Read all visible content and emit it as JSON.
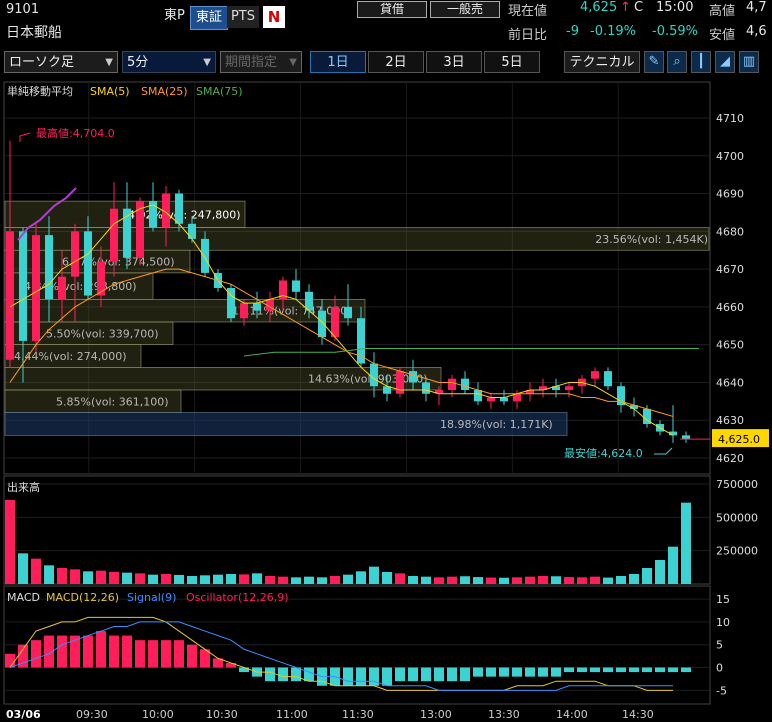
{
  "header": {
    "code": "9101",
    "name": "日本郵船",
    "market_prefix": "東P",
    "btn_tosho": "東証",
    "btn_pts": "PTS",
    "n_badge": "N",
    "btn_taishaku": "貸借",
    "btn_ippan": "一般売",
    "current_label": "現在値",
    "current_value": "4,625",
    "current_arrow": "↑",
    "current_flag": "C",
    "current_time": "15:00",
    "high_label": "高値",
    "high_value": "4,7",
    "prev_label": "前日比",
    "change_value": "-9",
    "change_pct": "-0.19%",
    "change_pct2": "-0.59%",
    "low_label": "安値",
    "low_value": "4,6"
  },
  "toolbar": {
    "chart_type": "ローソク足",
    "interval": "5分",
    "period_placeholder": "期間指定",
    "periods": [
      "1日",
      "2日",
      "3日",
      "5日"
    ],
    "selected_period": "1日",
    "technical": "テクニカル",
    "icons": [
      "pencil-icon",
      "zoom-icon",
      "candle-icon",
      "area-icon",
      "bar-icon"
    ]
  },
  "main": {
    "indicator_title": "単純移動平均",
    "sma5": "SMA(5)",
    "sma25": "SMA(25)",
    "sma75": "SMA(75)",
    "max_label": "最高値:4,704.0",
    "min_label": "最安値:4,624.0",
    "current_price_tag": "4,625.0",
    "y_ticks": [
      "4710",
      "4700",
      "4690",
      "4680",
      "4670",
      "4660",
      "4650",
      "4640",
      "4630",
      "4620"
    ],
    "volume_profile": [
      {
        "label": "4.02%(vol: 247,800)"
      },
      {
        "label": "23.56%(vol: 1,454K)"
      },
      {
        "label": "6.07%(vol: 374,500)"
      },
      {
        "label": "4.84%(vol: 298,800)"
      },
      {
        "label": "12.11%(vol: 747,000)"
      },
      {
        "label": "5.50%(vol: 339,700)"
      },
      {
        "label": "4.44%(vol: 274,000)"
      },
      {
        "label": "14.63%(vol: 903,000)"
      },
      {
        "label": "5.85%(vol: 361,100)"
      },
      {
        "label": "18.98%(vol: 1,171K)"
      }
    ]
  },
  "volume_panel": {
    "title": "出来高",
    "y_ticks": [
      "750000",
      "500000",
      "250000"
    ]
  },
  "macd_panel": {
    "title": "MACD",
    "macd": "MACD(12,26)",
    "signal": "Signal(9)",
    "osc": "Oscillator(12,26,9)",
    "y_ticks": [
      "15",
      "10",
      "5",
      "0",
      "-5"
    ]
  },
  "x_axis": [
    "03/06",
    "09:30",
    "10:00",
    "10:30",
    "11:00",
    "11:30",
    "13:00",
    "13:30",
    "14:00",
    "14:30"
  ],
  "colors": {
    "up": "#ff1e5a",
    "down": "#3cd2d2",
    "sma5": "#ffd700",
    "sma25": "#ff9a1e",
    "sma75": "#4caf50",
    "macd": "#e6c828",
    "signal": "#3a8fff",
    "osc": "#ff1e5a"
  },
  "chart_data": {
    "type": "candlestick",
    "interval": "5分",
    "price_ylim": [
      4618,
      4715
    ],
    "candles": [
      [
        4646,
        4704,
        4644,
        4680
      ],
      [
        4680,
        4681,
        4640,
        4651
      ],
      [
        4651,
        4682,
        4648,
        4679
      ],
      [
        4679,
        4684,
        4656,
        4662
      ],
      [
        4662,
        4675,
        4656,
        4668
      ],
      [
        4668,
        4682,
        4656,
        4680
      ],
      [
        4680,
        4684,
        4662,
        4663
      ],
      [
        4663,
        4676,
        4660,
        4672
      ],
      [
        4672,
        4693,
        4668,
        4686
      ],
      [
        4686,
        4693,
        4670,
        4673
      ],
      [
        4673,
        4689,
        4671,
        4688
      ],
      [
        4688,
        4693,
        4680,
        4681
      ],
      [
        4681,
        4692,
        4676,
        4690
      ],
      [
        4690,
        4691,
        4680,
        4682
      ],
      [
        4682,
        4684,
        4677,
        4678
      ],
      [
        4678,
        4680,
        4668,
        4669
      ],
      [
        4669,
        4670,
        4664,
        4665
      ],
      [
        4665,
        4666,
        4656,
        4657
      ],
      [
        4657,
        4662,
        4655,
        4661
      ],
      [
        4661,
        4664,
        4657,
        4659
      ],
      [
        4659,
        4664,
        4656,
        4662
      ],
      [
        4662,
        4668,
        4659,
        4667
      ],
      [
        4667,
        4670,
        4662,
        4664
      ],
      [
        4664,
        4666,
        4657,
        4659
      ],
      [
        4659,
        4662,
        4650,
        4652
      ],
      [
        4652,
        4663,
        4651,
        4660
      ],
      [
        4660,
        4666,
        4655,
        4657
      ],
      [
        4657,
        4660,
        4644,
        4645
      ],
      [
        4645,
        4648,
        4636,
        4639
      ],
      [
        4639,
        4642,
        4635,
        4637
      ],
      [
        4637,
        4644,
        4636,
        4643
      ],
      [
        4643,
        4646,
        4638,
        4640
      ],
      [
        4640,
        4641,
        4635,
        4637
      ],
      [
        4637,
        4639,
        4634,
        4638
      ],
      [
        4638,
        4642,
        4636,
        4641
      ],
      [
        4641,
        4643,
        4637,
        4638
      ],
      [
        4638,
        4640,
        4634,
        4635
      ],
      [
        4635,
        4637,
        4633,
        4636
      ],
      [
        4636,
        4638,
        4634,
        4635
      ],
      [
        4635,
        4638,
        4633,
        4637
      ],
      [
        4637,
        4640,
        4635,
        4638
      ],
      [
        4638,
        4641,
        4636,
        4639
      ],
      [
        4639,
        4641,
        4636,
        4638
      ],
      [
        4638,
        4640,
        4636,
        4639
      ],
      [
        4639,
        4642,
        4637,
        4641
      ],
      [
        4641,
        4644,
        4639,
        4643
      ],
      [
        4643,
        4644,
        4638,
        4639
      ],
      [
        4639,
        4640,
        4632,
        4634
      ],
      [
        4634,
        4636,
        4631,
        4633
      ],
      [
        4633,
        4634,
        4628,
        4629
      ],
      [
        4629,
        4630,
        4626,
        4627
      ],
      [
        4627,
        4634,
        4624,
        4626
      ],
      [
        4626,
        4627,
        4624,
        4625
      ]
    ],
    "sma5": [
      4660,
      4662,
      4664,
      4666,
      4670,
      4672,
      4674,
      4678,
      4682,
      4684,
      4686,
      4687,
      4685,
      4682,
      4678,
      4673,
      4667,
      4663,
      4661,
      4661,
      4662,
      4663,
      4662,
      4659,
      4656,
      4652,
      4648,
      4644,
      4641,
      4639,
      4638,
      4638,
      4638,
      4637,
      4637,
      4637,
      4637,
      4636,
      4636,
      4637,
      4638,
      4638,
      4639,
      4640,
      4640,
      4639,
      4637,
      4635,
      4633,
      4630,
      4628,
      4626
    ],
    "sma25": [
      4640,
      4645,
      4650,
      4654,
      4657,
      4660,
      4662,
      4664,
      4666,
      4667,
      4668,
      4669,
      4670,
      4670,
      4669,
      4668,
      4667,
      4666,
      4664,
      4662,
      4660,
      4658,
      4656,
      4654,
      4652,
      4650,
      4648,
      4647,
      4645,
      4644,
      4643,
      4642,
      4641,
      4640,
      4640,
      4639,
      4638,
      4637,
      4637,
      4637,
      4637,
      4637,
      4637,
      4637,
      4636,
      4636,
      4635,
      4635,
      4634,
      4633,
      4632,
      4631
    ],
    "sma75": [
      4647,
      4648,
      4648,
      4648,
      4649,
      4649,
      4649,
      4649,
      4649,
      4649,
      4649,
      4649,
      4649,
      4649,
      4649,
      4649
    ],
    "volume_ylim": [
      0,
      780000
    ],
    "volumes": [
      630000,
      230000,
      190000,
      140000,
      120000,
      110000,
      95000,
      100000,
      90000,
      85000,
      80000,
      70000,
      75000,
      68000,
      60000,
      65000,
      70000,
      75000,
      72000,
      80000,
      60000,
      55000,
      50000,
      55000,
      50000,
      60000,
      70000,
      95000,
      130000,
      90000,
      80000,
      60000,
      55000,
      50000,
      55000,
      58000,
      52000,
      48000,
      47000,
      50000,
      55000,
      60000,
      58000,
      52000,
      50000,
      55000,
      48000,
      60000,
      75000,
      120000,
      180000,
      280000,
      610000
    ],
    "macd_ylim": [
      -8,
      17
    ],
    "oscillator": [
      3,
      5,
      6,
      7,
      7,
      7,
      7,
      8,
      7,
      7,
      6,
      6,
      6,
      6,
      5,
      4,
      2,
      1,
      -1,
      -2,
      -3,
      -3,
      -3,
      -3,
      -4,
      -4,
      -4,
      -4,
      -4,
      -4,
      -3,
      -3,
      -3,
      -3,
      -3,
      -3,
      -2,
      -2,
      -2,
      -2,
      -2,
      -2,
      -2,
      -1,
      -1,
      -1,
      -1,
      -1,
      -1,
      -1,
      -1,
      -1,
      -1
    ],
    "macd": [
      0,
      4,
      8,
      9,
      10,
      10,
      11,
      11,
      11,
      11,
      11,
      11,
      10,
      8,
      6,
      4,
      2,
      1,
      0,
      -1,
      -1,
      -2,
      -2,
      -3,
      -3,
      -4,
      -4,
      -4,
      -4,
      -5,
      -5,
      -5,
      -5,
      -5,
      -5,
      -5,
      -5,
      -5,
      -5,
      -4,
      -4,
      -4,
      -3,
      -3,
      -3,
      -3,
      -4,
      -4,
      -4,
      -5,
      -5,
      -5
    ],
    "signal": [
      0,
      1,
      2,
      3,
      5,
      6,
      7,
      8,
      9,
      9,
      10,
      10,
      10,
      10,
      9,
      8,
      7,
      6,
      4,
      3,
      2,
      1,
      0,
      -1,
      -2,
      -2,
      -3,
      -3,
      -3,
      -4,
      -4,
      -4,
      -4,
      -5,
      -5,
      -5,
      -5,
      -5,
      -5,
      -5,
      -5,
      -5,
      -5,
      -4,
      -4,
      -4,
      -4,
      -4,
      -4,
      -4,
      -4,
      -4
    ]
  }
}
